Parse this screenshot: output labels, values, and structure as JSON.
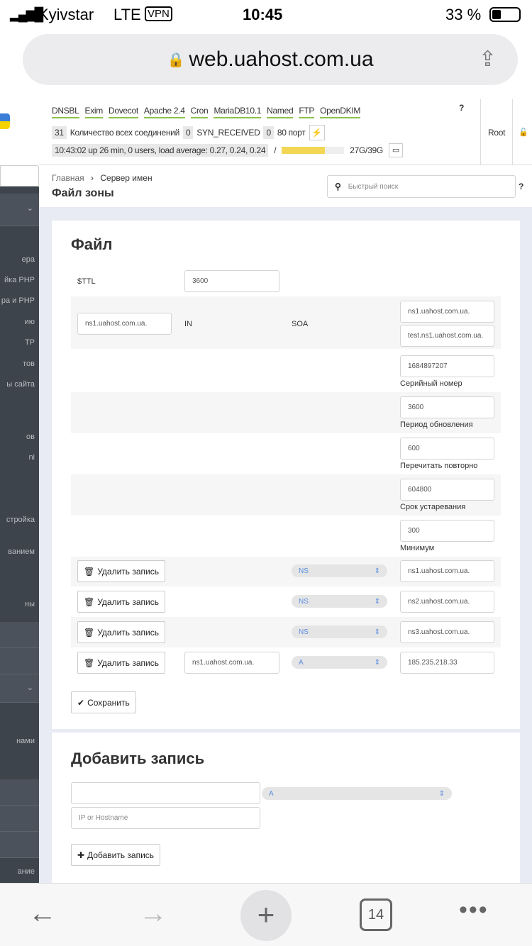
{
  "status": {
    "carrier": "Kyivstar",
    "network": "LTE",
    "vpn": "VPN",
    "time": "10:45",
    "battery": "33 %"
  },
  "browser": {
    "url": "web.uahost.com.ua",
    "tabs_count": "14"
  },
  "header": {
    "services": [
      "DNSBL",
      "Exim",
      "Dovecot",
      "Apache 2.4",
      "Cron",
      "MariaDB10.1",
      "Named",
      "FTP",
      "OpenDKIM"
    ],
    "connections_count": "31",
    "connections_label": "Количество всех соединений",
    "syn_count": "0",
    "syn_label": "SYN_RECEIVED",
    "port_count": "0",
    "port_label": "80 порт",
    "uptime": "10:43:02 up 26 min, 0 users, load average: 0.27, 0.24, 0.24",
    "disk_mount": "/",
    "disk_usage": "27G/39G",
    "disk_fraction": 0.69,
    "user": "Root"
  },
  "sidebar": {
    "items": [
      "ера",
      "йка PHP",
      "ра и PHP",
      "ию",
      "TP",
      "тов",
      "ы сайта",
      "ов",
      "ni",
      "стройка",
      "ванием",
      "ны",
      "нами",
      "ание"
    ]
  },
  "breadcrumb": {
    "home": "Главная",
    "current": "Сервер имен"
  },
  "page_title": "Файл зоны",
  "search": {
    "placeholder": "Быстрый поиск"
  },
  "file": {
    "title": "Файл",
    "ttl_label": "$TTL",
    "ttl": "3600",
    "origin": "ns1.uahost.com.ua.",
    "class": "IN",
    "type": "SOA",
    "primary_ns": "ns1.uahost.com.ua.",
    "admin": "test.ns1.uahost.com.ua.",
    "serial": "1684897207",
    "serial_label": "Серийный номер",
    "refresh": "3600",
    "refresh_label": "Период обновления",
    "retry": "600",
    "retry_label": "Перечитать повторно",
    "expire": "604800",
    "expire_label": "Срок устаревания",
    "minimum": "300",
    "minimum_label": "Минимум",
    "delete_label": "Удалить запись",
    "records": [
      {
        "name": "",
        "type": "NS",
        "value": "ns1.uahost.com.ua."
      },
      {
        "name": "",
        "type": "NS",
        "value": "ns2.uahost.com.ua."
      },
      {
        "name": "",
        "type": "NS",
        "value": "ns3.uahost.com.ua."
      },
      {
        "name": "ns1.uahost.com.ua.",
        "type": "A",
        "value": "185.235.218.33"
      }
    ],
    "save_label": "Сохранить"
  },
  "add": {
    "title": "Добавить запись",
    "name": "",
    "type": "A",
    "value_placeholder": "IP or Hostname",
    "add_label": "Добавить запись"
  }
}
